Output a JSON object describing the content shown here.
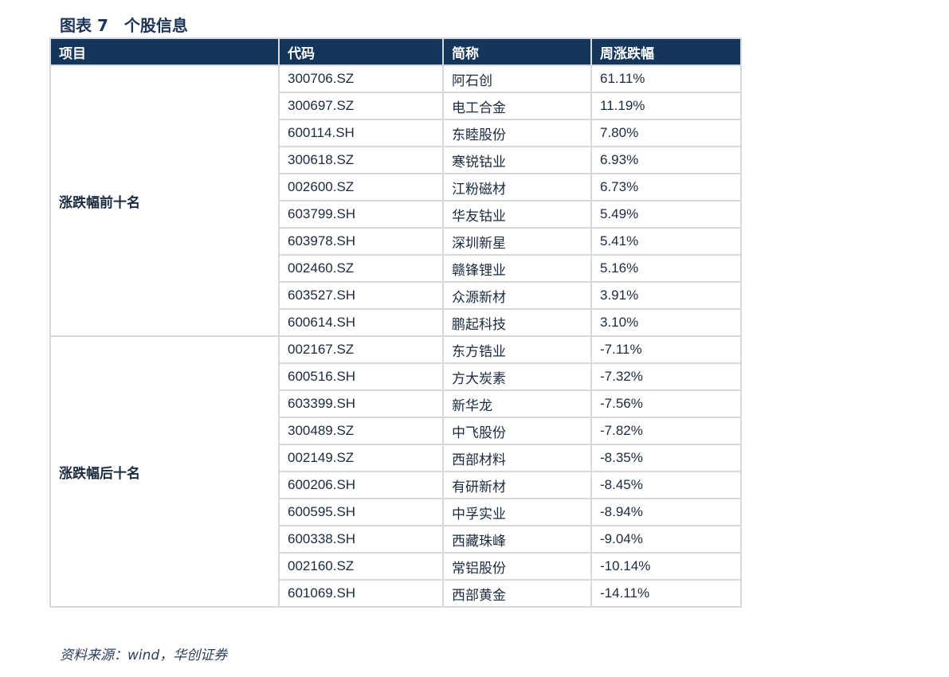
{
  "title": "图表 7　个股信息",
  "headers": [
    "项目",
    "代码",
    "简称",
    "周涨跌幅"
  ],
  "groups": [
    {
      "label": "涨跌幅前十名",
      "rows": [
        {
          "code": "300706.SZ",
          "name": "阿石创",
          "pct": "61.11%"
        },
        {
          "code": "300697.SZ",
          "name": "电工合金",
          "pct": "11.19%"
        },
        {
          "code": "600114.SH",
          "name": "东睦股份",
          "pct": "7.80%"
        },
        {
          "code": "300618.SZ",
          "name": "寒锐钴业",
          "pct": "6.93%"
        },
        {
          "code": "002600.SZ",
          "name": "江粉磁材",
          "pct": "6.73%"
        },
        {
          "code": "603799.SH",
          "name": "华友钴业",
          "pct": "5.49%"
        },
        {
          "code": "603978.SH",
          "name": "深圳新星",
          "pct": "5.41%"
        },
        {
          "code": "002460.SZ",
          "name": "赣锋锂业",
          "pct": "5.16%"
        },
        {
          "code": "603527.SH",
          "name": "众源新材",
          "pct": "3.91%"
        },
        {
          "code": "600614.SH",
          "name": "鹏起科技",
          "pct": "3.10%"
        }
      ]
    },
    {
      "label": "涨跌幅后十名",
      "rows": [
        {
          "code": "002167.SZ",
          "name": "东方锆业",
          "pct": "-7.11%"
        },
        {
          "code": "600516.SH",
          "name": "方大炭素",
          "pct": "-7.32%"
        },
        {
          "code": "603399.SH",
          "name": "新华龙",
          "pct": "-7.56%"
        },
        {
          "code": "300489.SZ",
          "name": "中飞股份",
          "pct": "-7.82%"
        },
        {
          "code": "002149.SZ",
          "name": "西部材料",
          "pct": "-8.35%"
        },
        {
          "code": "600206.SH",
          "name": "有研新材",
          "pct": "-8.45%"
        },
        {
          "code": "600595.SH",
          "name": "中孚实业",
          "pct": "-8.94%"
        },
        {
          "code": "600338.SH",
          "name": "西藏珠峰",
          "pct": "-9.04%"
        },
        {
          "code": "002160.SZ",
          "name": "常铝股份",
          "pct": "-10.14%"
        },
        {
          "code": "601069.SH",
          "name": "西部黄金",
          "pct": "-14.11%"
        }
      ]
    }
  ],
  "source": "资料来源：wind，华创证券"
}
